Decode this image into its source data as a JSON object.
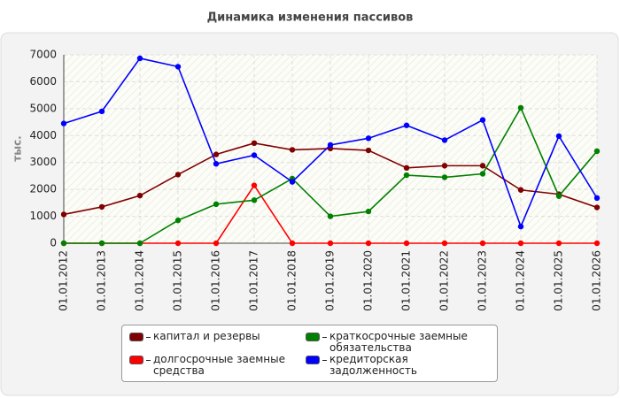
{
  "chart_data": {
    "type": "line",
    "title": "Динамика изменения пассивов",
    "y_label": "тыс.",
    "categories": [
      "01.01.2012",
      "01.01.2013",
      "01.01.2014",
      "01.01.2015",
      "01.01.2016",
      "01.01.2017",
      "01.01.2018",
      "01.01.2019",
      "01.01.2020",
      "01.01.2021",
      "01.01.2022",
      "01.01.2023",
      "01.01.2024",
      "01.01.2025",
      "01.01.2026"
    ],
    "series": [
      {
        "name": "капитал и резервы",
        "color": "#800000",
        "values": [
          1070,
          1350,
          1770,
          2550,
          3300,
          3720,
          3470,
          3520,
          3450,
          2800,
          2880,
          2880,
          1980,
          1820,
          1330
        ]
      },
      {
        "name": "долгосрочные заемные средства",
        "color": "#ff0000",
        "values": [
          0,
          0,
          0,
          0,
          0,
          2150,
          0,
          0,
          0,
          0,
          0,
          0,
          0,
          0,
          0
        ]
      },
      {
        "name": "краткосрочные заемные обязательства",
        "color": "#008000",
        "values": [
          0,
          0,
          0,
          850,
          1450,
          1600,
          2400,
          1000,
          1180,
          2530,
          2450,
          2580,
          5030,
          1750,
          3420
        ]
      },
      {
        "name": "кредиторская задолженность",
        "color": "#0000ff",
        "values": [
          4450,
          4900,
          6870,
          6560,
          2950,
          3270,
          2280,
          3650,
          3900,
          4380,
          3830,
          4580,
          620,
          3980,
          1680
        ]
      }
    ],
    "ylim": [
      0,
      7000
    ],
    "yticks": [
      0,
      1000,
      2000,
      3000,
      4000,
      5000,
      6000,
      7000
    ],
    "grid": true
  }
}
